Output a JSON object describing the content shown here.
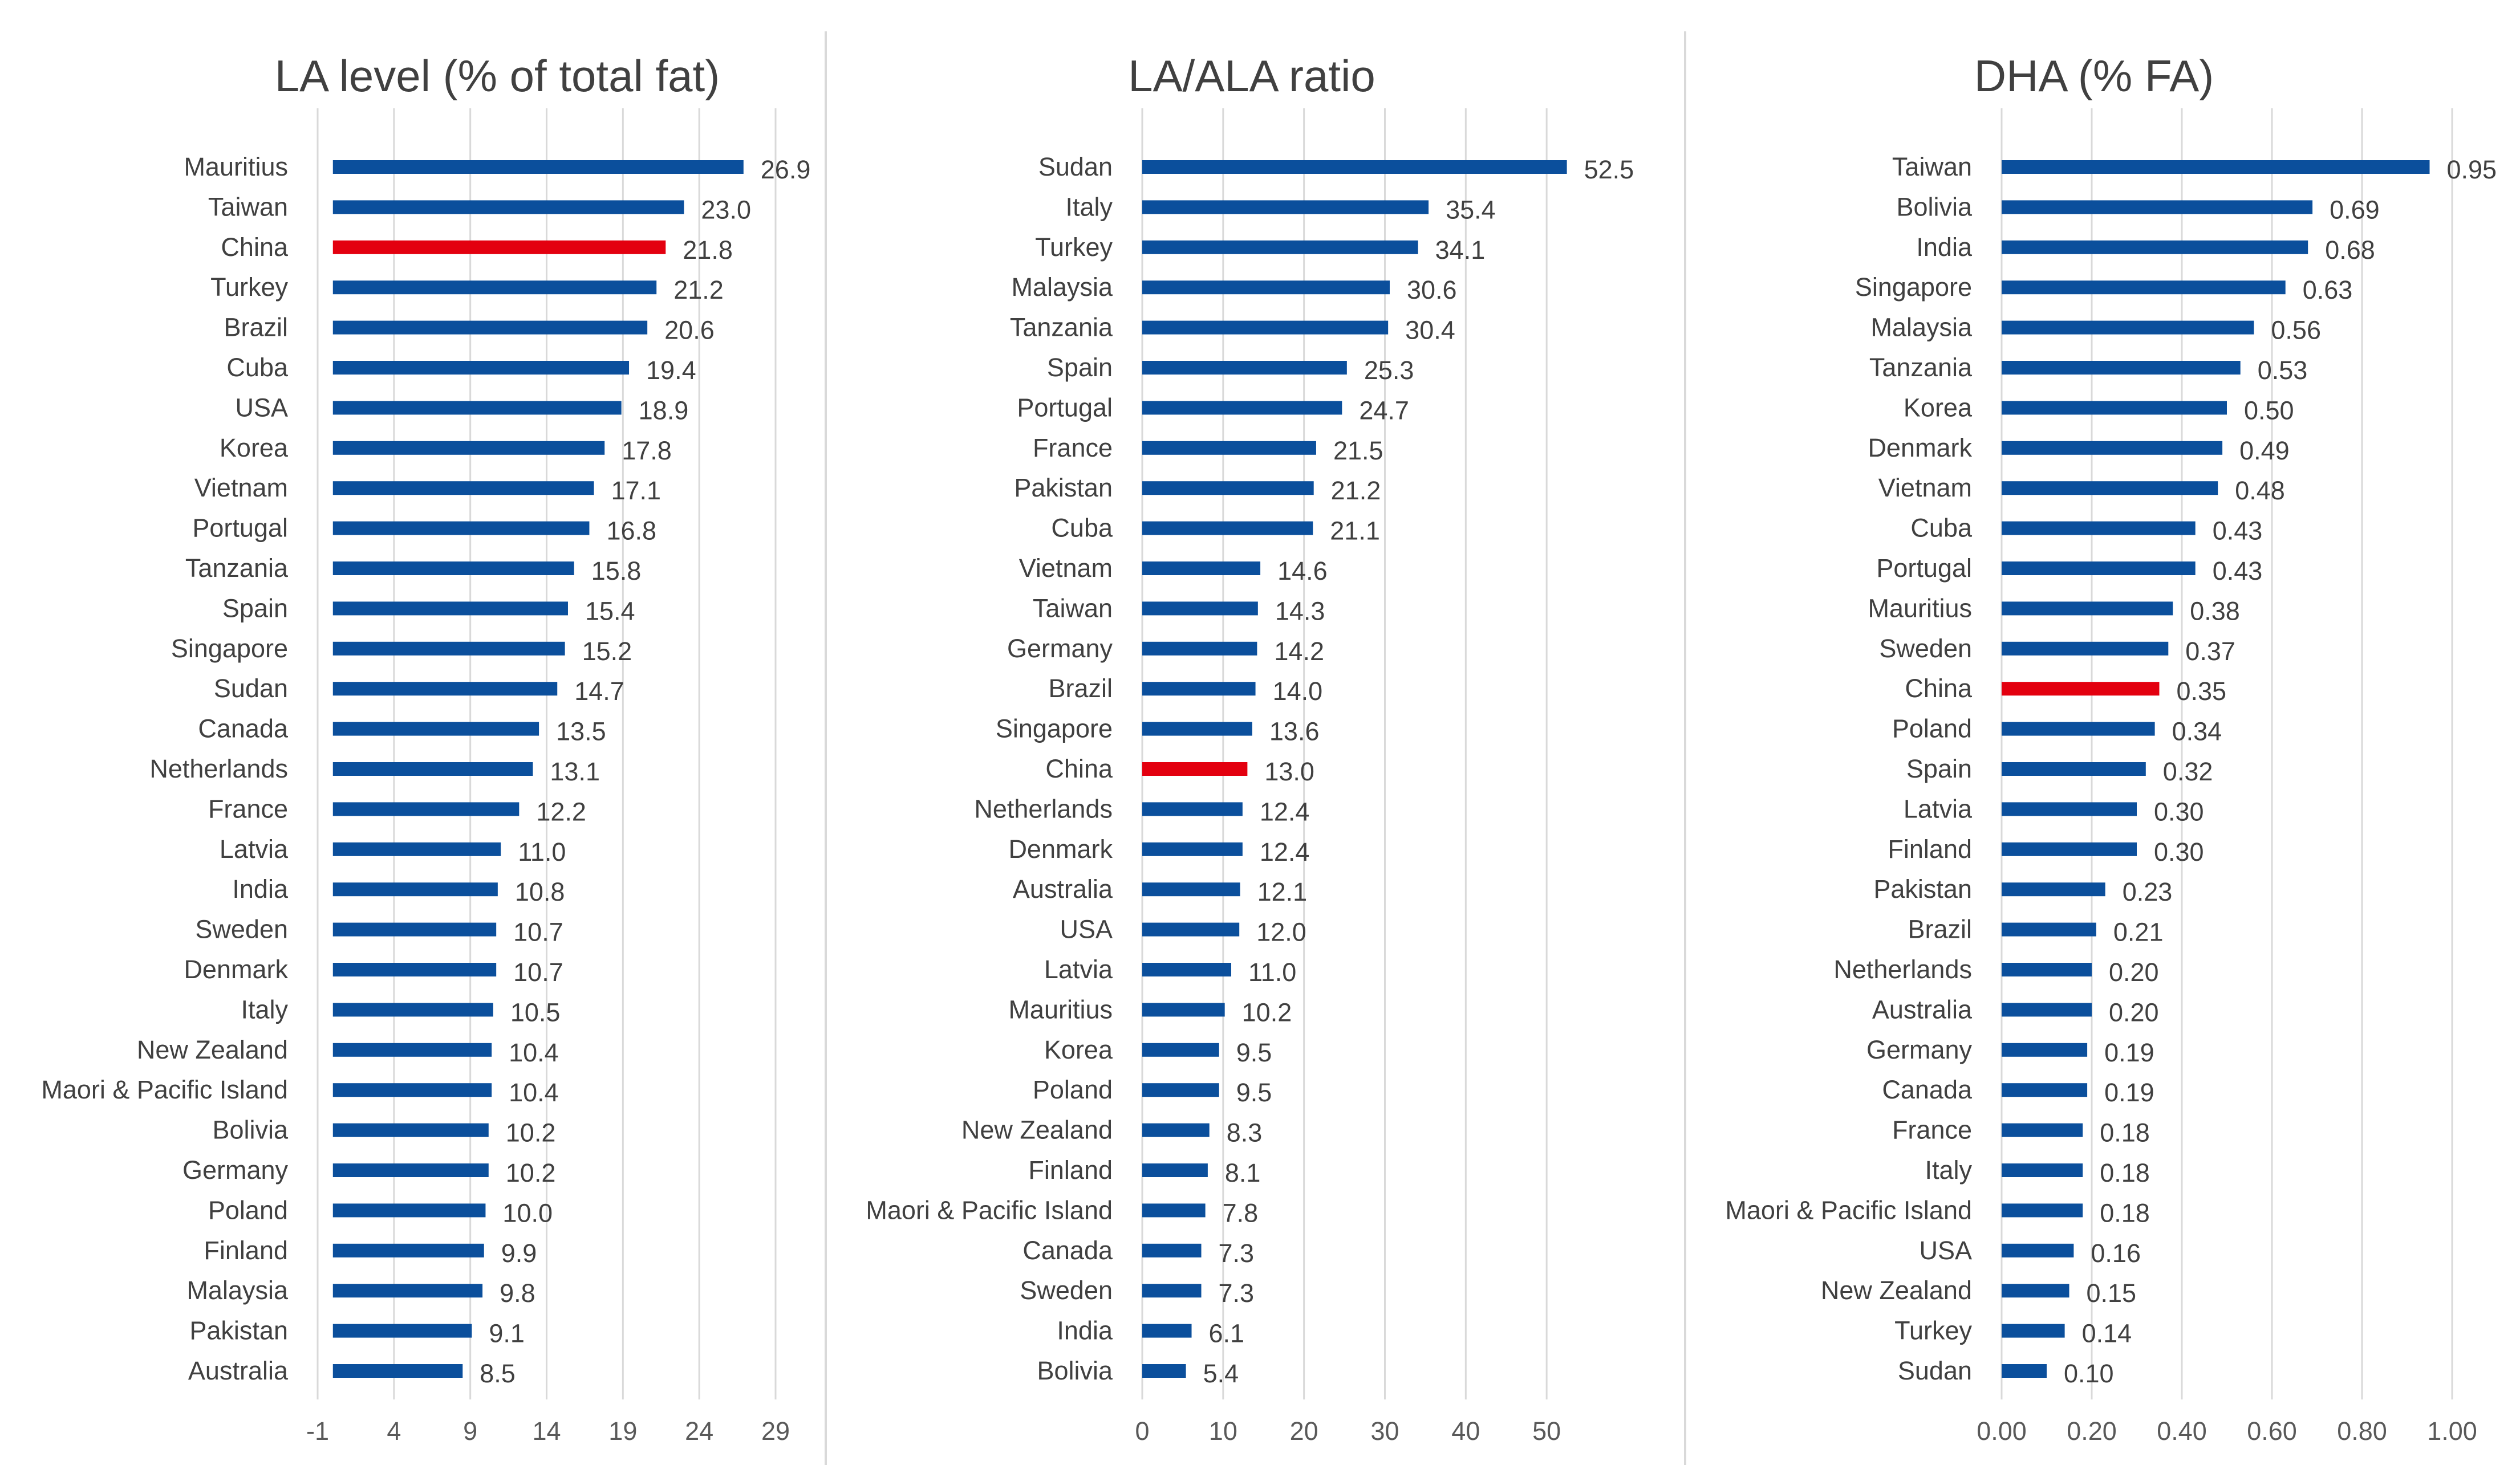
{
  "colors": {
    "bar": "#0b4f9c",
    "highlight": "#e3000f",
    "text": "#404040"
  },
  "chart_data": [
    {
      "type": "bar",
      "orientation": "horizontal",
      "title": "LA level (% of total fat)",
      "highlight": "China",
      "xlim": [
        -1,
        29
      ],
      "ticks": [
        -1,
        4,
        9,
        14,
        19,
        24,
        29
      ],
      "tick_labels": [
        "-1",
        "4",
        "9",
        "14",
        "19",
        "24",
        "29"
      ],
      "grid": true,
      "categories": [
        "Mauritius",
        "Taiwan",
        "China",
        "Turkey",
        "Brazil",
        "Cuba",
        "USA",
        "Korea",
        "Vietnam",
        "Portugal",
        "Tanzania",
        "Spain",
        "Singapore",
        "Sudan",
        "Canada",
        "Netherlands",
        "France",
        "Latvia",
        "India",
        "Sweden",
        "Denmark",
        "Italy",
        "New Zealand",
        "Maori & Pacific Island",
        "Bolivia",
        "Germany",
        "Poland",
        "Finland",
        "Malaysia",
        "Pakistan",
        "Australia"
      ],
      "values": [
        26.9,
        23.0,
        21.8,
        21.2,
        20.6,
        19.4,
        18.9,
        17.8,
        17.1,
        16.8,
        15.8,
        15.4,
        15.2,
        14.7,
        13.5,
        13.1,
        12.2,
        11.0,
        10.8,
        10.7,
        10.7,
        10.5,
        10.4,
        10.4,
        10.2,
        10.2,
        10.0,
        9.9,
        9.8,
        9.1,
        8.5
      ],
      "value_labels": [
        "26.9",
        "23.0",
        "21.8",
        "21.2",
        "20.6",
        "19.4",
        "18.9",
        "17.8",
        "17.1",
        "16.8",
        "15.8",
        "15.4",
        "15.2",
        "14.7",
        "13.5",
        "13.1",
        "12.2",
        "11.0",
        "10.8",
        "10.7",
        "10.7",
        "10.5",
        "10.4",
        "10.4",
        "10.2",
        "10.2",
        "10.0",
        "9.9",
        "9.8",
        "9.1",
        "8.5"
      ]
    },
    {
      "type": "bar",
      "orientation": "horizontal",
      "title": "LA/ALA ratio",
      "highlight": "China",
      "xlim": [
        0,
        60
      ],
      "ticks": [
        0,
        10,
        20,
        30,
        40,
        50
      ],
      "tick_labels": [
        "0",
        "10",
        "20",
        "30",
        "40",
        "50"
      ],
      "grid": true,
      "categories": [
        "Sudan",
        "Italy",
        "Turkey",
        "Malaysia",
        "Tanzania",
        "Spain",
        "Portugal",
        "France",
        "Pakistan",
        "Cuba",
        "Vietnam",
        "Taiwan",
        "Germany",
        "Brazil",
        "Singapore",
        "China",
        "Netherlands",
        "Denmark",
        "Australia",
        "USA",
        "Latvia",
        "Mauritius",
        "Korea",
        "Poland",
        "New Zealand",
        "Finland",
        "Maori & Pacific Island",
        "Canada",
        "Sweden",
        "India",
        "Bolivia"
      ],
      "values": [
        52.5,
        35.4,
        34.1,
        30.6,
        30.4,
        25.3,
        24.7,
        21.5,
        21.2,
        21.1,
        14.6,
        14.3,
        14.2,
        14.0,
        13.6,
        13.0,
        12.4,
        12.4,
        12.1,
        12.0,
        11.0,
        10.2,
        9.5,
        9.5,
        8.3,
        8.1,
        7.8,
        7.3,
        7.3,
        6.1,
        5.4
      ],
      "value_labels": [
        "52.5",
        "35.4",
        "34.1",
        "30.6",
        "30.4",
        "25.3",
        "24.7",
        "21.5",
        "21.2",
        "21.1",
        "14.6",
        "14.3",
        "14.2",
        "14.0",
        "13.6",
        "13.0",
        "12.4",
        "12.4",
        "12.1",
        "12.0",
        "11.0",
        "10.2",
        "9.5",
        "9.5",
        "8.3",
        "8.1",
        "7.8",
        "7.3",
        "7.3",
        "6.1",
        "5.4"
      ]
    },
    {
      "type": "bar",
      "orientation": "horizontal",
      "title": "DHA (% FA)",
      "highlight": "China",
      "xlim": [
        0,
        1.0
      ],
      "ticks": [
        0,
        0.2,
        0.4,
        0.6,
        0.8,
        1.0
      ],
      "tick_labels": [
        "0.00",
        "0.20",
        "0.40",
        "0.60",
        "0.80",
        "1.00"
      ],
      "grid": true,
      "categories": [
        "Taiwan",
        "Bolivia",
        "India",
        "Singapore",
        "Malaysia",
        "Tanzania",
        "Korea",
        "Denmark",
        "Vietnam",
        "Cuba",
        "Portugal",
        "Mauritius",
        "Sweden",
        "China",
        "Poland",
        "Spain",
        "Latvia",
        "Finland",
        "Pakistan",
        "Brazil",
        "Netherlands",
        "Australia",
        "Germany",
        "Canada",
        "France",
        "Italy",
        "Maori & Pacific Island",
        "USA",
        "New Zealand",
        "Turkey",
        "Sudan"
      ],
      "values": [
        0.95,
        0.69,
        0.68,
        0.63,
        0.56,
        0.53,
        0.5,
        0.49,
        0.48,
        0.43,
        0.43,
        0.38,
        0.37,
        0.35,
        0.34,
        0.32,
        0.3,
        0.3,
        0.23,
        0.21,
        0.2,
        0.2,
        0.19,
        0.19,
        0.18,
        0.18,
        0.18,
        0.16,
        0.15,
        0.14,
        0.1
      ],
      "value_labels": [
        "0.95",
        "0.69",
        "0.68",
        "0.63",
        "0.56",
        "0.53",
        "0.50",
        "0.49",
        "0.48",
        "0.43",
        "0.43",
        "0.38",
        "0.37",
        "0.35",
        "0.34",
        "0.32",
        "0.30",
        "0.30",
        "0.23",
        "0.21",
        "0.20",
        "0.20",
        "0.19",
        "0.19",
        "0.18",
        "0.18",
        "0.18",
        "0.16",
        "0.15",
        "0.14",
        "0.10"
      ]
    }
  ]
}
